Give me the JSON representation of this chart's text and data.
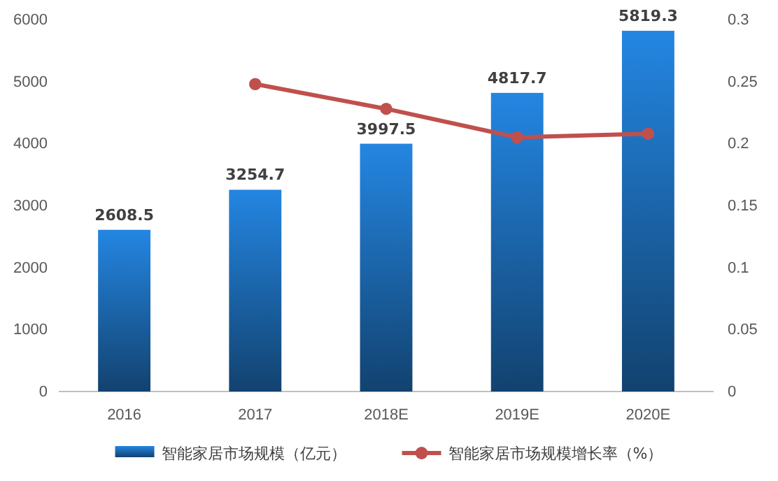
{
  "chart_data": {
    "type": "bar",
    "categories": [
      "2016",
      "2017",
      "2018E",
      "2019E",
      "2020E"
    ],
    "series": [
      {
        "name": "智能家居市场规模（亿元）",
        "color": "#1f74c4",
        "values": [
          2608.5,
          3254.7,
          3997.5,
          4817.7,
          5819.3
        ],
        "value_labels": [
          "2608.5",
          "3254.7",
          "3997.5",
          "4817.7",
          "5819.3"
        ]
      },
      {
        "name": "智能家居市场规模增长率（%）",
        "type": "line",
        "axis": "y2",
        "color": "#c0504d",
        "values": [
          null,
          0.248,
          0.228,
          0.205,
          0.208
        ]
      }
    ],
    "ylim": [
      0,
      6000
    ],
    "yticks": [
      0,
      1000,
      2000,
      3000,
      4000,
      5000,
      6000
    ],
    "y2lim": [
      0,
      0.3
    ],
    "y2ticks": [
      0,
      0.05,
      0.1,
      0.15,
      0.2,
      0.25,
      0.3
    ],
    "legend": "bottom",
    "marker": "circle",
    "line_style": "solid",
    "grid": false
  }
}
